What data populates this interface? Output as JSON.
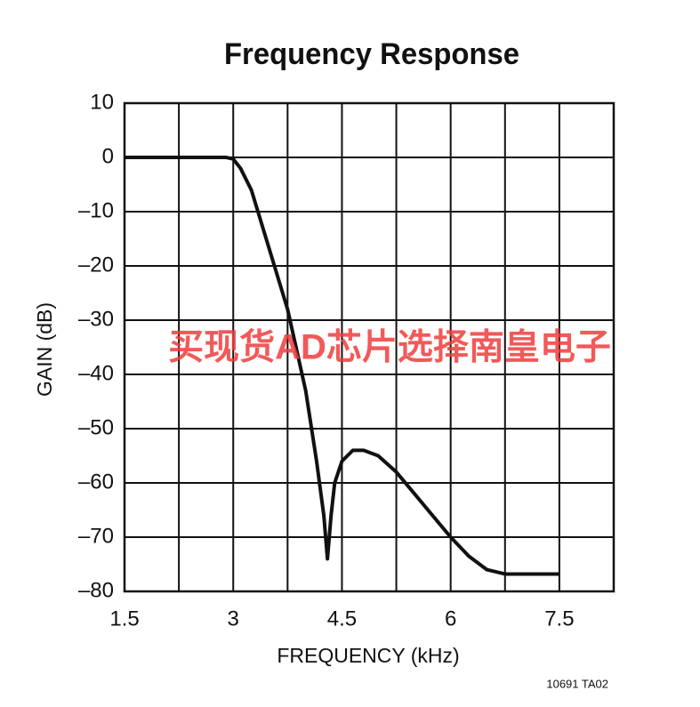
{
  "chart_data": {
    "type": "line",
    "title": "Frequency Response",
    "x_label": "FREQUENCY (kHz)",
    "y_label": "GAIN (dB)",
    "note": "10691 TA02",
    "annotation": "买现货AD芯片选择南皇电子",
    "xlim": [
      1.5,
      8.25
    ],
    "ylim": [
      -80,
      10
    ],
    "xticks": [
      1.5,
      3,
      4.5,
      6,
      7.5
    ],
    "x_grid": [
      2.25,
      3,
      3.75,
      4.5,
      5.25,
      6,
      6.75,
      7.5
    ],
    "yticks": [
      10,
      0,
      {
        "value": -10,
        "label": "–10"
      },
      {
        "value": -20,
        "label": "–20"
      },
      {
        "value": -30,
        "label": "–30"
      },
      {
        "value": -40,
        "label": "–40"
      },
      {
        "value": -50,
        "label": "–50"
      },
      {
        "value": -60,
        "label": "–60"
      },
      {
        "value": -70,
        "label": "–70"
      },
      {
        "value": -80,
        "label": "–80"
      }
    ],
    "grid": true,
    "x": [
      1.5,
      2,
      2.5,
      2.9,
      3.0,
      3.1,
      3.25,
      3.5,
      3.75,
      4.0,
      4.15,
      4.25,
      4.3,
      4.35,
      4.4,
      4.5,
      4.65,
      4.8,
      5.0,
      5.25,
      5.5,
      5.75,
      6.0,
      6.25,
      6.5,
      6.75,
      7.0,
      7.5
    ],
    "series": [
      {
        "color": "#111111",
        "values": [
          0,
          0,
          0,
          0,
          -0.3,
          -2,
          -6,
          -17,
          -28,
          -43,
          -56,
          -66,
          -74,
          -66,
          -60,
          -56,
          -54,
          -54,
          -55,
          -58,
          -62,
          -66,
          -70,
          -73.5,
          -76,
          -76.8,
          -76.8,
          -76.8
        ]
      }
    ]
  }
}
